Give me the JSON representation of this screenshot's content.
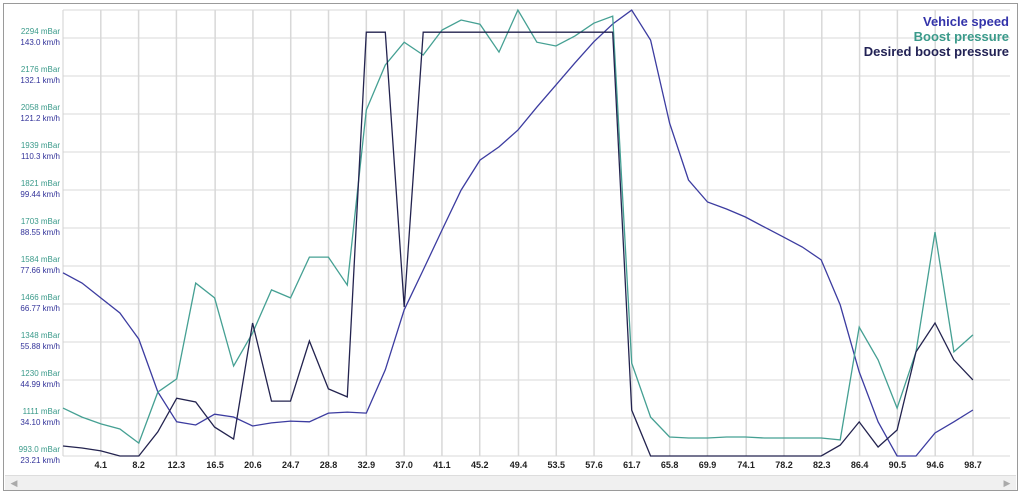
{
  "chart_data": {
    "type": "line",
    "legend": {
      "placement": "top-right"
    },
    "grid": true,
    "x_tick_labels": [
      "4.1",
      "8.2",
      "12.3",
      "16.5",
      "20.6",
      "24.7",
      "28.8",
      "32.9",
      "37.0",
      "41.1",
      "45.2",
      "49.4",
      "53.5",
      "57.6",
      "61.7",
      "65.8",
      "69.9",
      "74.1",
      "78.2",
      "82.3",
      "86.4",
      "90.5",
      "94.6",
      "98.7"
    ],
    "xlim": [
      0,
      98.7
    ],
    "y_left_pressure": {
      "unit": "mBar",
      "range": [
        993,
        2294
      ],
      "tick_labels": [
        "2294 mBar",
        "2176 mBar",
        "2058 mBar",
        "1939 mBar",
        "1821 mBar",
        "1703 mBar",
        "1584 mBar",
        "1466 mBar",
        "1348 mBar",
        "1230 mBar",
        "1111 mBar",
        "993.0 mBar"
      ]
    },
    "y_left_speed": {
      "unit": "km/h",
      "range": [
        23.21,
        143.0
      ],
      "tick_labels": [
        "143.0 km/h",
        "132.1 km/h",
        "121.2 km/h",
        "110.3 km/h",
        "99.44 km/h",
        "88.55 km/h",
        "77.66 km/h",
        "66.77 km/h",
        "55.88 km/h",
        "44.99 km/h",
        "34.10 km/h",
        "23.21 km/h"
      ]
    },
    "x_step": 2.056,
    "series": [
      {
        "name": "Vehicle speed",
        "axis": "speed",
        "color": "#3c3ca0",
        "values": [
          75.7,
          72.8,
          68.5,
          64.2,
          56.7,
          41.6,
          33.0,
          32.1,
          35.2,
          34.4,
          31.8,
          32.7,
          33.2,
          33.0,
          35.5,
          35.8,
          35.5,
          47.9,
          65.1,
          76.5,
          88.0,
          99.4,
          108.0,
          111.8,
          116.6,
          123.2,
          129.5,
          135.8,
          141.9,
          147.0,
          151.0,
          142.4,
          118.6,
          102.3,
          96.0,
          94.0,
          91.7,
          88.8,
          86.0,
          83.1,
          79.4,
          66.5,
          47.3,
          33.0,
          23.2,
          23.2,
          29.8,
          33.0,
          36.4
        ]
      },
      {
        "name": "Boost pressure",
        "axis": "pressure",
        "color": "#45a093",
        "values": [
          1142,
          1114,
          1093,
          1077,
          1033,
          1192,
          1233,
          1531,
          1485,
          1273,
          1376,
          1510,
          1485,
          1612,
          1612,
          1525,
          2070,
          2210,
          2281,
          2241,
          2319,
          2350,
          2337,
          2250,
          2381,
          2281,
          2269,
          2300,
          2340,
          2362,
          1282,
          1114,
          1052,
          1049,
          1049,
          1052,
          1052,
          1049,
          1049,
          1049,
          1049,
          1043,
          1394,
          1292,
          1142,
          1317,
          1690,
          1317,
          1370
        ]
      },
      {
        "name": "Desired boost pressure",
        "axis": "pressure",
        "color": "#23234f",
        "values": [
          1024,
          1018,
          1009,
          993,
          993,
          1068,
          1173,
          1161,
          1083,
          1046,
          1407,
          1164,
          1164,
          1351,
          1202,
          1177,
          2312,
          2312,
          1457,
          2312,
          2312,
          2312,
          2312,
          2312,
          2312,
          2312,
          2312,
          2312,
          2312,
          2312,
          1136,
          993,
          993,
          993,
          993,
          993,
          993,
          993,
          993,
          993,
          993,
          1027,
          1099,
          1021,
          1074,
          1317,
          1407,
          1292,
          1230
        ]
      }
    ]
  },
  "legend_colors": {
    "Vehicle speed": "#3333aa",
    "Boost pressure": "#3a9a8a",
    "Desired boost pressure": "#222255"
  },
  "scrollbar": {
    "left_icon": "arrow-left-icon",
    "right_icon": "arrow-right-icon"
  }
}
